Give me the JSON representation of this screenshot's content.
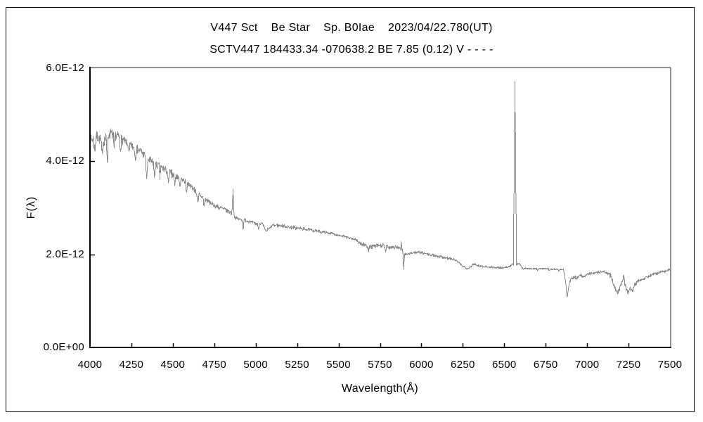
{
  "window": {
    "background": "#ffffff",
    "border_color": "#000000"
  },
  "chart_data": {
    "type": "line",
    "series_name": "V447 Sct spectrum",
    "title_line1": "V447 Sct    Be Star    Sp. B0Iae    2023/04/22.780(UT)",
    "title_line2": "SCTV447 184433.34 -070638.2 BE 7.85 (0.12) V - - - -",
    "xlabel": "Wavelength(Å)",
    "ylabel": "F(λ)",
    "xlim": [
      4000,
      7500
    ],
    "ylim_e12": [
      0,
      6
    ],
    "x_ticks": [
      4000,
      4250,
      4500,
      4750,
      5000,
      5250,
      5500,
      5750,
      6000,
      6250,
      6500,
      6750,
      7000,
      7250,
      7500
    ],
    "y_ticks_e12": [
      0,
      2,
      4,
      6
    ],
    "y_tick_labels": [
      "0.0E+00",
      "2.0E-12",
      "4.0E-12",
      "6.0E-12"
    ],
    "grid": false,
    "legend": false,
    "line_color": "#8a8a8a",
    "axis_color": "#000000",
    "frame_shadow_color": "#909090",
    "background_color": "#ffffff",
    "text_color": "#000000",
    "sample_step_angstrom": 2,
    "noise_seed": 7,
    "continuum_points_e12": [
      [
        4000,
        4.45
      ],
      [
        4040,
        4.55
      ],
      [
        4075,
        4.42
      ],
      [
        4120,
        4.6
      ],
      [
        4160,
        4.55
      ],
      [
        4200,
        4.45
      ],
      [
        4250,
        4.33
      ],
      [
        4300,
        4.24
      ],
      [
        4350,
        4.05
      ],
      [
        4400,
        3.92
      ],
      [
        4450,
        3.83
      ],
      [
        4500,
        3.72
      ],
      [
        4550,
        3.63
      ],
      [
        4600,
        3.5
      ],
      [
        4650,
        3.31
      ],
      [
        4700,
        3.17
      ],
      [
        4750,
        3.06
      ],
      [
        4800,
        2.98
      ],
      [
        4858,
        2.89
      ],
      [
        4875,
        2.8
      ],
      [
        4900,
        2.76
      ],
      [
        4950,
        2.73
      ],
      [
        5000,
        2.66
      ],
      [
        5035,
        2.68
      ],
      [
        5060,
        2.5
      ],
      [
        5100,
        2.63
      ],
      [
        5150,
        2.63
      ],
      [
        5200,
        2.59
      ],
      [
        5250,
        2.57
      ],
      [
        5300,
        2.55
      ],
      [
        5350,
        2.52
      ],
      [
        5400,
        2.49
      ],
      [
        5450,
        2.46
      ],
      [
        5500,
        2.42
      ],
      [
        5560,
        2.36
      ],
      [
        5600,
        2.33
      ],
      [
        5640,
        2.22
      ],
      [
        5700,
        2.17
      ],
      [
        5750,
        2.2
      ],
      [
        5800,
        2.17
      ],
      [
        5850,
        2.16
      ],
      [
        5882,
        2.1
      ],
      [
        5905,
        2.0
      ],
      [
        5950,
        2.05
      ],
      [
        6000,
        2.04
      ],
      [
        6050,
        2.0
      ],
      [
        6100,
        1.97
      ],
      [
        6150,
        1.93
      ],
      [
        6200,
        1.89
      ],
      [
        6245,
        1.76
      ],
      [
        6280,
        1.7
      ],
      [
        6315,
        1.8
      ],
      [
        6360,
        1.75
      ],
      [
        6420,
        1.73
      ],
      [
        6480,
        1.72
      ],
      [
        6530,
        1.74
      ],
      [
        6545,
        1.8
      ],
      [
        6563,
        1.76
      ],
      [
        6588,
        1.82
      ],
      [
        6605,
        1.72
      ],
      [
        6650,
        1.7
      ],
      [
        6750,
        1.7
      ],
      [
        6855,
        1.68
      ],
      [
        6866,
        1.45
      ],
      [
        6878,
        1.09
      ],
      [
        6888,
        1.35
      ],
      [
        6900,
        1.49
      ],
      [
        6918,
        1.52
      ],
      [
        6935,
        1.49
      ],
      [
        6955,
        1.56
      ],
      [
        6975,
        1.52
      ],
      [
        7000,
        1.58
      ],
      [
        7040,
        1.61
      ],
      [
        7080,
        1.63
      ],
      [
        7110,
        1.62
      ],
      [
        7140,
        1.55
      ],
      [
        7165,
        1.3
      ],
      [
        7183,
        1.18
      ],
      [
        7200,
        1.32
      ],
      [
        7216,
        1.53
      ],
      [
        7228,
        1.33
      ],
      [
        7243,
        1.19
      ],
      [
        7258,
        1.29
      ],
      [
        7272,
        1.24
      ],
      [
        7287,
        1.38
      ],
      [
        7305,
        1.43
      ],
      [
        7330,
        1.48
      ],
      [
        7360,
        1.52
      ],
      [
        7400,
        1.58
      ],
      [
        7440,
        1.62
      ],
      [
        7470,
        1.65
      ],
      [
        7500,
        1.69
      ]
    ],
    "absorption_lines": [
      [
        4026,
        0.28,
        8
      ],
      [
        4070,
        0.33,
        7
      ],
      [
        4102,
        0.52,
        8
      ],
      [
        4144,
        0.3,
        7
      ],
      [
        4182,
        0.22,
        6
      ],
      [
        4233,
        0.24,
        6
      ],
      [
        4271,
        0.26,
        6
      ],
      [
        4340,
        0.46,
        8
      ],
      [
        4387,
        0.32,
        7
      ],
      [
        4420,
        0.24,
        6
      ],
      [
        4471,
        0.3,
        7
      ],
      [
        4510,
        0.2,
        6
      ],
      [
        4541,
        0.2,
        6
      ],
      [
        4580,
        0.22,
        6
      ],
      [
        4649,
        0.26,
        7
      ],
      [
        4686,
        0.18,
        6
      ],
      [
        4922,
        0.2,
        6
      ],
      [
        5015,
        0.16,
        6
      ],
      [
        5680,
        0.12,
        8
      ],
      [
        5780,
        0.11,
        7
      ],
      [
        5891,
        0.44,
        6
      ],
      [
        6613,
        0.05,
        5
      ],
      [
        6700,
        0.04,
        5
      ],
      [
        6770,
        0.04,
        5
      ],
      [
        6827,
        0.05,
        5
      ]
    ],
    "emission_lines": [
      [
        4861,
        3.42,
        6
      ],
      [
        5876,
        2.28,
        4
      ],
      [
        6563,
        5.73,
        9
      ],
      [
        7221,
        1.57,
        4
      ]
    ],
    "noise_regions": [
      [
        4000,
        4200,
        0.12
      ],
      [
        4200,
        4500,
        0.09
      ],
      [
        4500,
        4860,
        0.055
      ],
      [
        4868,
        5300,
        0.035
      ],
      [
        5300,
        5620,
        0.028
      ],
      [
        5620,
        5860,
        0.05
      ],
      [
        5860,
        6240,
        0.028
      ],
      [
        6240,
        6554,
        0.02
      ],
      [
        6572,
        6855,
        0.012
      ],
      [
        6855,
        7130,
        0.033
      ],
      [
        7130,
        7300,
        0.05
      ],
      [
        7300,
        7500,
        0.028
      ]
    ]
  }
}
